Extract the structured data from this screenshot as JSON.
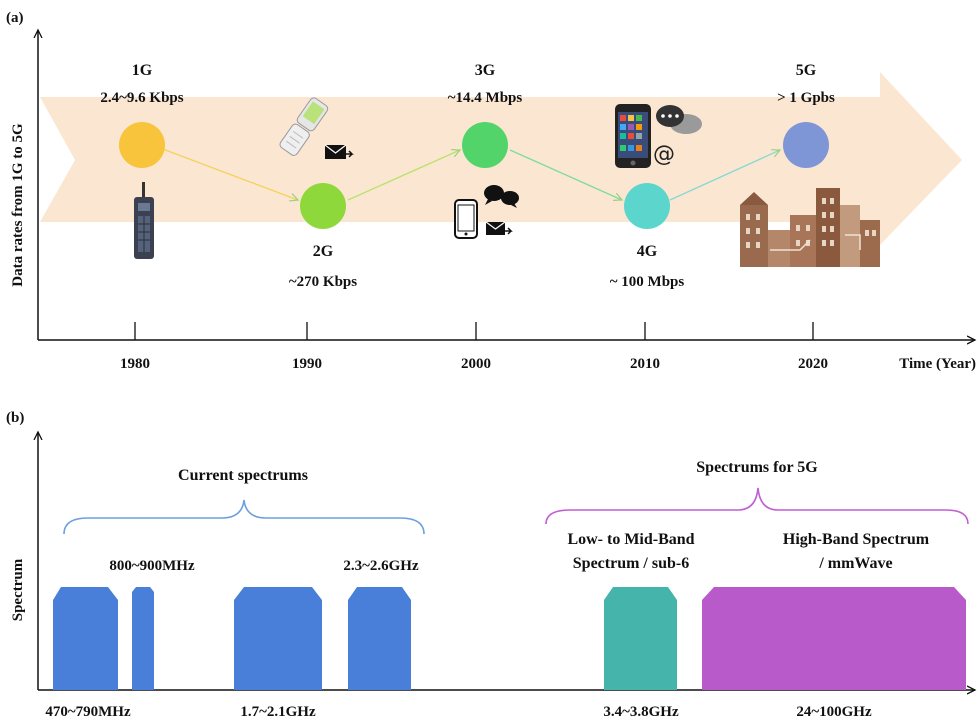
{
  "panel_a": {
    "label": "(a)",
    "y_axis_label": "Data rates from 1G to 5G",
    "x_axis_label": "Time (Year)",
    "years": [
      "1980",
      "1990",
      "2000",
      "2010",
      "2020"
    ],
    "generations": [
      {
        "name": "1G",
        "rate": "2.4~9.6 Kbps",
        "color": "#f7c43c"
      },
      {
        "name": "2G",
        "rate": "~270 Kbps",
        "color": "#8fd83c"
      },
      {
        "name": "3G",
        "rate": "~14.4 Mbps",
        "color": "#52d46a"
      },
      {
        "name": "4G",
        "rate": "~ 100 Mbps",
        "color": "#5cd6cc"
      },
      {
        "name": "5G",
        "rate": "> 1 Gpbs",
        "color": "#7f96d6"
      }
    ],
    "arrow_color": "#fbe6d2"
  },
  "panel_b": {
    "label": "(b)",
    "y_axis_label": "Spectrum",
    "current_group": {
      "label": "Current spectrums",
      "color": "#5b93de"
    },
    "fiveg_group": {
      "label": "Spectrums for 5G",
      "color": "#c25ed3"
    },
    "top_labels": {
      "band_800": "800~900MHz",
      "band_23": "2.3~2.6GHz",
      "low_mid_1": "Low- to Mid-Band",
      "low_mid_2": "Spectrum / sub-6",
      "high_1": "High-Band Spectrum",
      "high_2": "/ mmWave"
    },
    "bottom_labels": [
      "470~790MHz",
      "1.7~2.1GHz",
      "3.4~3.8GHz",
      "24~100GHz"
    ],
    "colors": {
      "current": "#4a7fd9",
      "sub6": "#45b5ac",
      "mmwave": "#b95acb"
    }
  }
}
